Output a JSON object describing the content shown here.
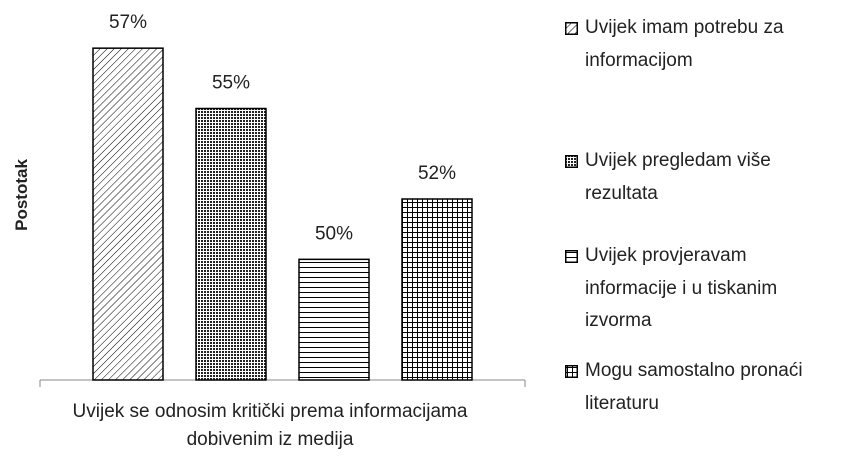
{
  "chart_data": {
    "type": "bar",
    "ylabel": "Postotak",
    "categories": [
      "Uvijek se odnosim kritički prema informacijama dobivenim iz medija"
    ],
    "series": [
      {
        "name": "Uvijek imam potrebu za informacijom",
        "color": "#000000",
        "values": [
          57
        ],
        "value_labels": [
          "57%"
        ]
      },
      {
        "name": "Uvijek pregledam više rezultata",
        "color": "#000000",
        "values": [
          55
        ],
        "value_labels": [
          "55%"
        ]
      },
      {
        "name": "Uvijek provjeravam informacije i u tiskanim izvorma",
        "color": "#000000",
        "values": [
          50
        ],
        "value_labels": [
          "50%"
        ]
      },
      {
        "name": "Mogu samostalno pronaći literaturu",
        "color": "#000000",
        "values": [
          52
        ],
        "value_labels": [
          "52%"
        ]
      }
    ],
    "ylim": [
      46,
      58
    ],
    "legend": "right"
  }
}
